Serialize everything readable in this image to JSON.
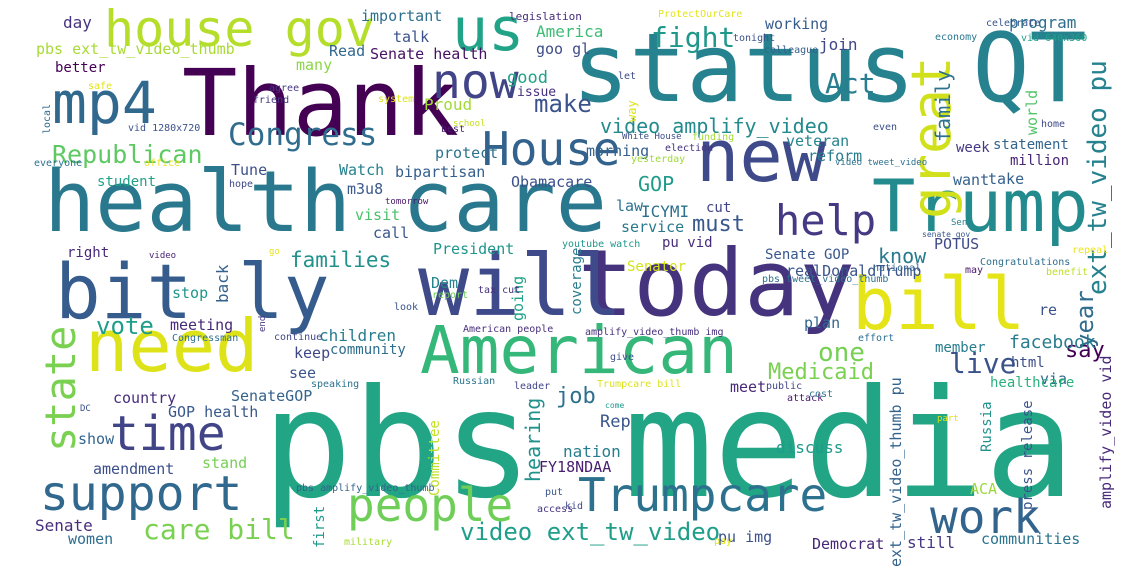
{
  "words": [
    {
      "text": "pbs media",
      "color": "#21a585"
    },
    {
      "text": "health care",
      "color": "#2a788e"
    },
    {
      "text": "status QT",
      "color": "#26828e"
    },
    {
      "text": "Thank",
      "color": "#440154"
    },
    {
      "text": "today",
      "color": "#46337e"
    },
    {
      "text": "will",
      "color": "#3e4a89"
    },
    {
      "text": "bit ly",
      "color": "#365c8d"
    },
    {
      "text": "new",
      "color": "#3e4a89"
    },
    {
      "text": "American",
      "color": "#35b779"
    },
    {
      "text": "need",
      "color": "#dde318"
    },
    {
      "text": "Trump",
      "color": "#238a8d"
    },
    {
      "text": "bill",
      "color": "#e5e419"
    },
    {
      "text": "mp4",
      "color": "#31688e"
    },
    {
      "text": "us",
      "color": "#20a386"
    },
    {
      "text": "house gov",
      "color": "#b5de2b"
    },
    {
      "text": "now",
      "color": "#414487"
    },
    {
      "text": "great",
      "color": "#d0e11c"
    },
    {
      "text": "support",
      "color": "#31688e"
    },
    {
      "text": "time",
      "color": "#414487"
    },
    {
      "text": "Trumpcare",
      "color": "#2c728e"
    },
    {
      "text": "people",
      "color": "#6ece58"
    },
    {
      "text": "work",
      "color": "#32648e"
    },
    {
      "text": "help",
      "color": "#443983"
    },
    {
      "text": "state",
      "color": "#7ad151"
    },
    {
      "text": "Congress",
      "color": "#2f6c8e"
    },
    {
      "text": "House",
      "color": "#33638d"
    },
    {
      "text": "Republican",
      "color": "#5ec962"
    },
    {
      "text": "fight",
      "color": "#1f988b"
    },
    {
      "text": "Act",
      "color": "#287d8e"
    },
    {
      "text": "make",
      "color": "#3b528b"
    },
    {
      "text": "video amplify_video",
      "color": "#238a8d"
    },
    {
      "text": "ext_tw_video pu",
      "color": "#26828e"
    },
    {
      "text": "care bill",
      "color": "#7ad151"
    },
    {
      "text": "video ext_tw_video",
      "color": "#1f9e89"
    },
    {
      "text": "Medicaid",
      "color": "#7ad151"
    },
    {
      "text": "live",
      "color": "#3b528b"
    },
    {
      "text": "one",
      "color": "#75d054"
    },
    {
      "text": "year",
      "color": "#2f6c8e"
    },
    {
      "text": "families",
      "color": "#21918c"
    },
    {
      "text": "vote",
      "color": "#1f9e89"
    },
    {
      "text": "job",
      "color": "#2d708e"
    },
    {
      "text": "GOP",
      "color": "#1e9c89"
    },
    {
      "text": "must",
      "color": "#38588c"
    },
    {
      "text": "know",
      "color": "#29798e"
    },
    {
      "text": "family",
      "color": "#2c728e"
    },
    {
      "text": "say",
      "color": "#440154"
    },
    {
      "text": "facebook",
      "color": "#287c8e"
    },
    {
      "text": "hearing",
      "color": "#21918c"
    },
    {
      "text": "program",
      "color": "#2e6e8e"
    },
    {
      "text": "working",
      "color": "#375b8d"
    },
    {
      "text": "join",
      "color": "#404688"
    },
    {
      "text": "Senate health",
      "color": "#471164"
    },
    {
      "text": "important",
      "color": "#2e6f8e"
    },
    {
      "text": "day",
      "color": "#46327e"
    },
    {
      "text": "pbs ext_tw_video_thumb",
      "color": "#a8db34"
    },
    {
      "text": "America",
      "color": "#3dbc74"
    },
    {
      "text": "goo gl",
      "color": "#3e4c8a"
    },
    {
      "text": "talk",
      "color": "#3b528b"
    },
    {
      "text": "Read",
      "color": "#31678e"
    },
    {
      "text": "many",
      "color": "#8bd646"
    },
    {
      "text": "better",
      "color": "#440154"
    },
    {
      "text": "good",
      "color": "#1fa188"
    },
    {
      "text": "issue",
      "color": "#46307e"
    },
    {
      "text": "Proud",
      "color": "#a2da37"
    },
    {
      "text": "morning",
      "color": "#34618d"
    },
    {
      "text": "protect",
      "color": "#2c718e"
    },
    {
      "text": "veteran",
      "color": "#25848e"
    },
    {
      "text": "reform",
      "color": "#287d8e"
    },
    {
      "text": "week",
      "color": "#453882"
    },
    {
      "text": "statement",
      "color": "#32658e"
    },
    {
      "text": "million",
      "color": "#482576"
    },
    {
      "text": "world",
      "color": "#52c569"
    },
    {
      "text": "Tune",
      "color": "#3c4f8a"
    },
    {
      "text": "Watch",
      "color": "#26818e"
    },
    {
      "text": "bipartisan",
      "color": "#35608d"
    },
    {
      "text": "Obamacare",
      "color": "#3b528b"
    },
    {
      "text": "student",
      "color": "#1fa287"
    },
    {
      "text": "m3u8",
      "color": "#38598c"
    },
    {
      "text": "law",
      "color": "#2c728e"
    },
    {
      "text": "ICYMI",
      "color": "#2c718e"
    },
    {
      "text": "cut",
      "color": "#414487"
    },
    {
      "text": "want",
      "color": "#34618d"
    },
    {
      "text": "take",
      "color": "#35608d"
    },
    {
      "text": "visit",
      "color": "#4ac16d"
    },
    {
      "text": "call",
      "color": "#39568c"
    },
    {
      "text": "service",
      "color": "#297a8e"
    },
    {
      "text": "pu vid",
      "color": "#472c7a"
    },
    {
      "text": "Senate GOP",
      "color": "#38588c"
    },
    {
      "text": "realDonaldTrump",
      "color": "#3a548c"
    },
    {
      "text": "POTUS",
      "color": "#3e4a89"
    },
    {
      "text": "right",
      "color": "#482979"
    },
    {
      "text": "back",
      "color": "#34618d"
    },
    {
      "text": "President",
      "color": "#1f958b"
    },
    {
      "text": "coverage",
      "color": "#287d8e"
    },
    {
      "text": "Senator",
      "color": "#d5e21a"
    },
    {
      "text": "stop",
      "color": "#1f968b"
    },
    {
      "text": "meeting",
      "color": "#482979"
    },
    {
      "text": "Dem",
      "color": "#25848e"
    },
    {
      "text": "going",
      "color": "#1fa287"
    },
    {
      "text": "children",
      "color": "#287d8e"
    },
    {
      "text": "keep",
      "color": "#3f4788"
    },
    {
      "text": "community",
      "color": "#2e6d8e"
    },
    {
      "text": "plan",
      "color": "#32658e"
    },
    {
      "text": "re",
      "color": "#3b528b"
    },
    {
      "text": "via",
      "color": "#306a8e"
    },
    {
      "text": "html",
      "color": "#3d4d8a"
    },
    {
      "text": "member",
      "color": "#287c8e"
    },
    {
      "text": "healthcare",
      "color": "#2ab07f"
    },
    {
      "text": "see",
      "color": "#3a548c"
    },
    {
      "text": "SenateGOP",
      "color": "#33638d"
    },
    {
      "text": "country",
      "color": "#472d7b"
    },
    {
      "text": "GOP health",
      "color": "#38588c"
    },
    {
      "text": "Rep",
      "color": "#39568c"
    },
    {
      "text": "meet",
      "color": "#482878"
    },
    {
      "text": "discuss",
      "color": "#1e9b8a"
    },
    {
      "text": "Russia",
      "color": "#21918c"
    },
    {
      "text": "press release",
      "color": "#3a548c"
    },
    {
      "text": "amplify_video vid",
      "color": "#482878"
    },
    {
      "text": "ext_tw_video_thumb pu",
      "color": "#33638d"
    },
    {
      "text": "nation",
      "color": "#287d8e"
    },
    {
      "text": "Committee",
      "color": "#c2df23"
    },
    {
      "text": "FY18NDAA",
      "color": "#481f70"
    },
    {
      "text": "show",
      "color": "#32648e"
    },
    {
      "text": "stand",
      "color": "#75d054"
    },
    {
      "text": "amendment",
      "color": "#3c4f8a"
    },
    {
      "text": "ACA",
      "color": "#9dd93b"
    },
    {
      "text": "Senate",
      "color": "#472d7b"
    },
    {
      "text": "women",
      "color": "#2e6e8e"
    },
    {
      "text": "first",
      "color": "#1f9a8a"
    },
    {
      "text": "still",
      "color": "#453781"
    },
    {
      "text": "communities",
      "color": "#2b748e"
    },
    {
      "text": "Democrat",
      "color": "#482677"
    },
    {
      "text": "pu img",
      "color": "#3b528b"
    },
    {
      "text": "legislation",
      "color": "#472c7a"
    },
    {
      "text": "ProtectOurCare",
      "color": "#e2e418"
    },
    {
      "text": "way",
      "color": "#dde318"
    },
    {
      "text": "tonight",
      "color": "#3b528b"
    },
    {
      "text": "colleague",
      "color": "#355f8d"
    },
    {
      "text": "celebrate",
      "color": "#39568c"
    },
    {
      "text": "economy",
      "color": "#2a778e"
    },
    {
      "text": "vid 640x360",
      "color": "#1fa088"
    },
    {
      "text": "safe",
      "color": "#e0e318"
    },
    {
      "text": "agree",
      "color": "#453882"
    },
    {
      "text": "friend",
      "color": "#453781"
    },
    {
      "text": "system",
      "color": "#dde318"
    },
    {
      "text": "let",
      "color": "#3e4a89"
    },
    {
      "text": "local",
      "color": "#306a8e"
    },
    {
      "text": "vid 1280x720",
      "color": "#3b528b"
    },
    {
      "text": "best",
      "color": "#481f70"
    },
    {
      "text": "school",
      "color": "#c8e020"
    },
    {
      "text": "White House",
      "color": "#3d4d8a"
    },
    {
      "text": "funding",
      "color": "#a5db36"
    },
    {
      "text": "even",
      "color": "#3c4f8a"
    },
    {
      "text": "home",
      "color": "#3e4a89"
    },
    {
      "text": "everyone",
      "color": "#2c728e"
    },
    {
      "text": "office",
      "color": "#ece51b"
    },
    {
      "text": "election",
      "color": "#46307e"
    },
    {
      "text": "yesterday",
      "color": "#a0da39"
    },
    {
      "text": "video tweet_video",
      "color": "#2c718e"
    },
    {
      "text": "hope",
      "color": "#3f4788"
    },
    {
      "text": "tomorrow",
      "color": "#48186a"
    },
    {
      "text": "Sen",
      "color": "#277f8e"
    },
    {
      "text": "senate gov",
      "color": "#38588c"
    },
    {
      "text": "youtube watch",
      "color": "#1f968b"
    },
    {
      "text": "repeal",
      "color": "#ece51b"
    },
    {
      "text": "video",
      "color": "#482475"
    },
    {
      "text": "go",
      "color": "#e7e419"
    },
    {
      "text": "pbs tweet_video_thumb",
      "color": "#2c718e"
    },
    {
      "text": "Congratulations",
      "color": "#2e6f8e"
    },
    {
      "text": "national",
      "color": "#33638d"
    },
    {
      "text": "may",
      "color": "#481769"
    },
    {
      "text": "benefit",
      "color": "#bddf26"
    },
    {
      "text": "report",
      "color": "#6ece58"
    },
    {
      "text": "tax cut",
      "color": "#46307e"
    },
    {
      "text": "look",
      "color": "#3a548c"
    },
    {
      "text": "end",
      "color": "#453882"
    },
    {
      "text": "Congressman",
      "color": "#2e6d8e"
    },
    {
      "text": "continue",
      "color": "#3f4788"
    },
    {
      "text": "American people",
      "color": "#472f7d"
    },
    {
      "text": "amplify_video_thumb img",
      "color": "#472f7d"
    },
    {
      "text": "effort",
      "color": "#2d708e"
    },
    {
      "text": "give",
      "color": "#3c508b"
    },
    {
      "text": "speaking",
      "color": "#2c718e"
    },
    {
      "text": "Russian",
      "color": "#2b748e"
    },
    {
      "text": "leader",
      "color": "#404688"
    },
    {
      "text": "Trumpcare bill",
      "color": "#dde318"
    },
    {
      "text": "public",
      "color": "#414487"
    },
    {
      "text": "attack",
      "color": "#481769"
    },
    {
      "text": "cost",
      "color": "#2b758e"
    },
    {
      "text": "DC",
      "color": "#3b528b"
    },
    {
      "text": "come",
      "color": "#1f988b"
    },
    {
      "text": "part",
      "color": "#d8e219"
    },
    {
      "text": "kid",
      "color": "#3e4a89"
    },
    {
      "text": "put",
      "color": "#39568c"
    },
    {
      "text": "access",
      "color": "#46337e"
    },
    {
      "text": "pbs amplify_video_thumb",
      "color": "#32648e"
    },
    {
      "text": "military",
      "color": "#a8db34"
    },
    {
      "text": "pay",
      "color": "#e5e419"
    }
  ]
}
